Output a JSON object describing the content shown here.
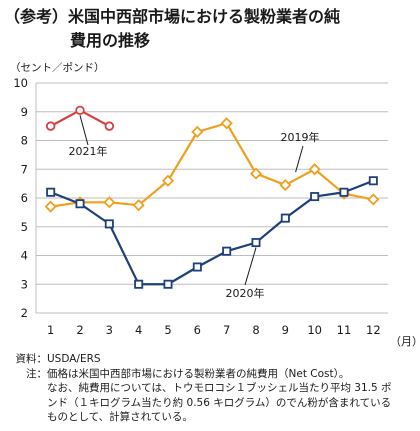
{
  "title": {
    "prefix": "（参考）",
    "line1": "米国中西部市場における製粉業者の純",
    "line2": "費用の推移"
  },
  "notes": {
    "source_label": "資料：",
    "source": "USDA/ERS",
    "note_label": "注：",
    "note_lines": [
      "価格は米国中西部市場における製粉業者の純費用（Net Cost）。",
      "なお、純費用については、トウモロコシ１ブッシェル当たり平均 31.5 ポ",
      "ンド（１キログラム当たり約 0.56 キログラム）のでん粉が含まれている",
      "ものとして、計算されている。"
    ]
  },
  "chart_data": {
    "type": "line",
    "ylabel": "（セント／ポンド）",
    "xlabel": "（月）",
    "ylim": [
      2,
      10
    ],
    "yticks": [
      2,
      3,
      4,
      5,
      6,
      7,
      8,
      9,
      10
    ],
    "categories": [
      "1",
      "2",
      "3",
      "4",
      "5",
      "6",
      "7",
      "8",
      "9",
      "10",
      "11",
      "12"
    ],
    "grid": "horizontal",
    "series": [
      {
        "name": "2019年",
        "color": "#f0a020",
        "marker": "diamond",
        "x": [
          1,
          2,
          3,
          4,
          5,
          6,
          7,
          8,
          9,
          10,
          11,
          12
        ],
        "values": [
          5.7,
          5.85,
          5.85,
          5.75,
          6.6,
          8.3,
          8.6,
          6.85,
          6.45,
          7.0,
          6.15,
          5.95
        ]
      },
      {
        "name": "2020年",
        "color": "#1f3f7a",
        "marker": "square",
        "x": [
          1,
          2,
          3,
          4,
          5,
          6,
          7,
          8,
          9,
          10,
          11,
          12
        ],
        "values": [
          6.2,
          5.8,
          5.1,
          3.0,
          3.0,
          3.6,
          4.15,
          4.45,
          5.3,
          6.05,
          6.2,
          6.6
        ]
      },
      {
        "name": "2021年",
        "color": "#d94040",
        "marker": "circle",
        "x": [
          1,
          2,
          3
        ],
        "values": [
          8.5,
          9.05,
          8.5
        ]
      }
    ]
  }
}
